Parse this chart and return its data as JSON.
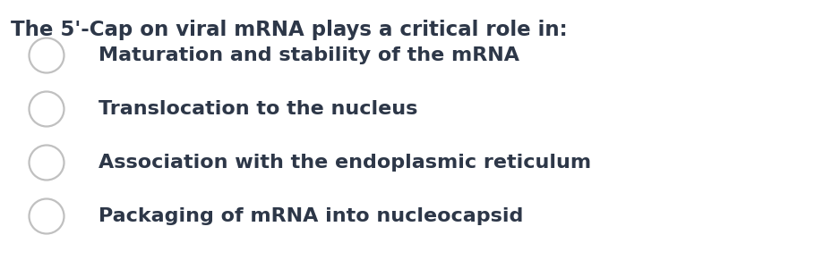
{
  "title": "The 5'-Cap on viral mRNA plays a critical role in:",
  "options": [
    "Maturation and stability of the mRNA",
    "Translocation to the nucleus",
    "Association with the endoplasmic reticulum",
    "Packaging of mRNA into nucleocapsid"
  ],
  "background_color": "#ffffff",
  "title_color": "#2d3748",
  "option_color": "#2d3748",
  "circle_edge_color": "#c0c0c0",
  "circle_face_color": "#ffffff",
  "title_fontsize": 16.5,
  "option_fontsize": 16.0,
  "figwidth": 9.2,
  "figheight": 3.1,
  "dpi": 100
}
